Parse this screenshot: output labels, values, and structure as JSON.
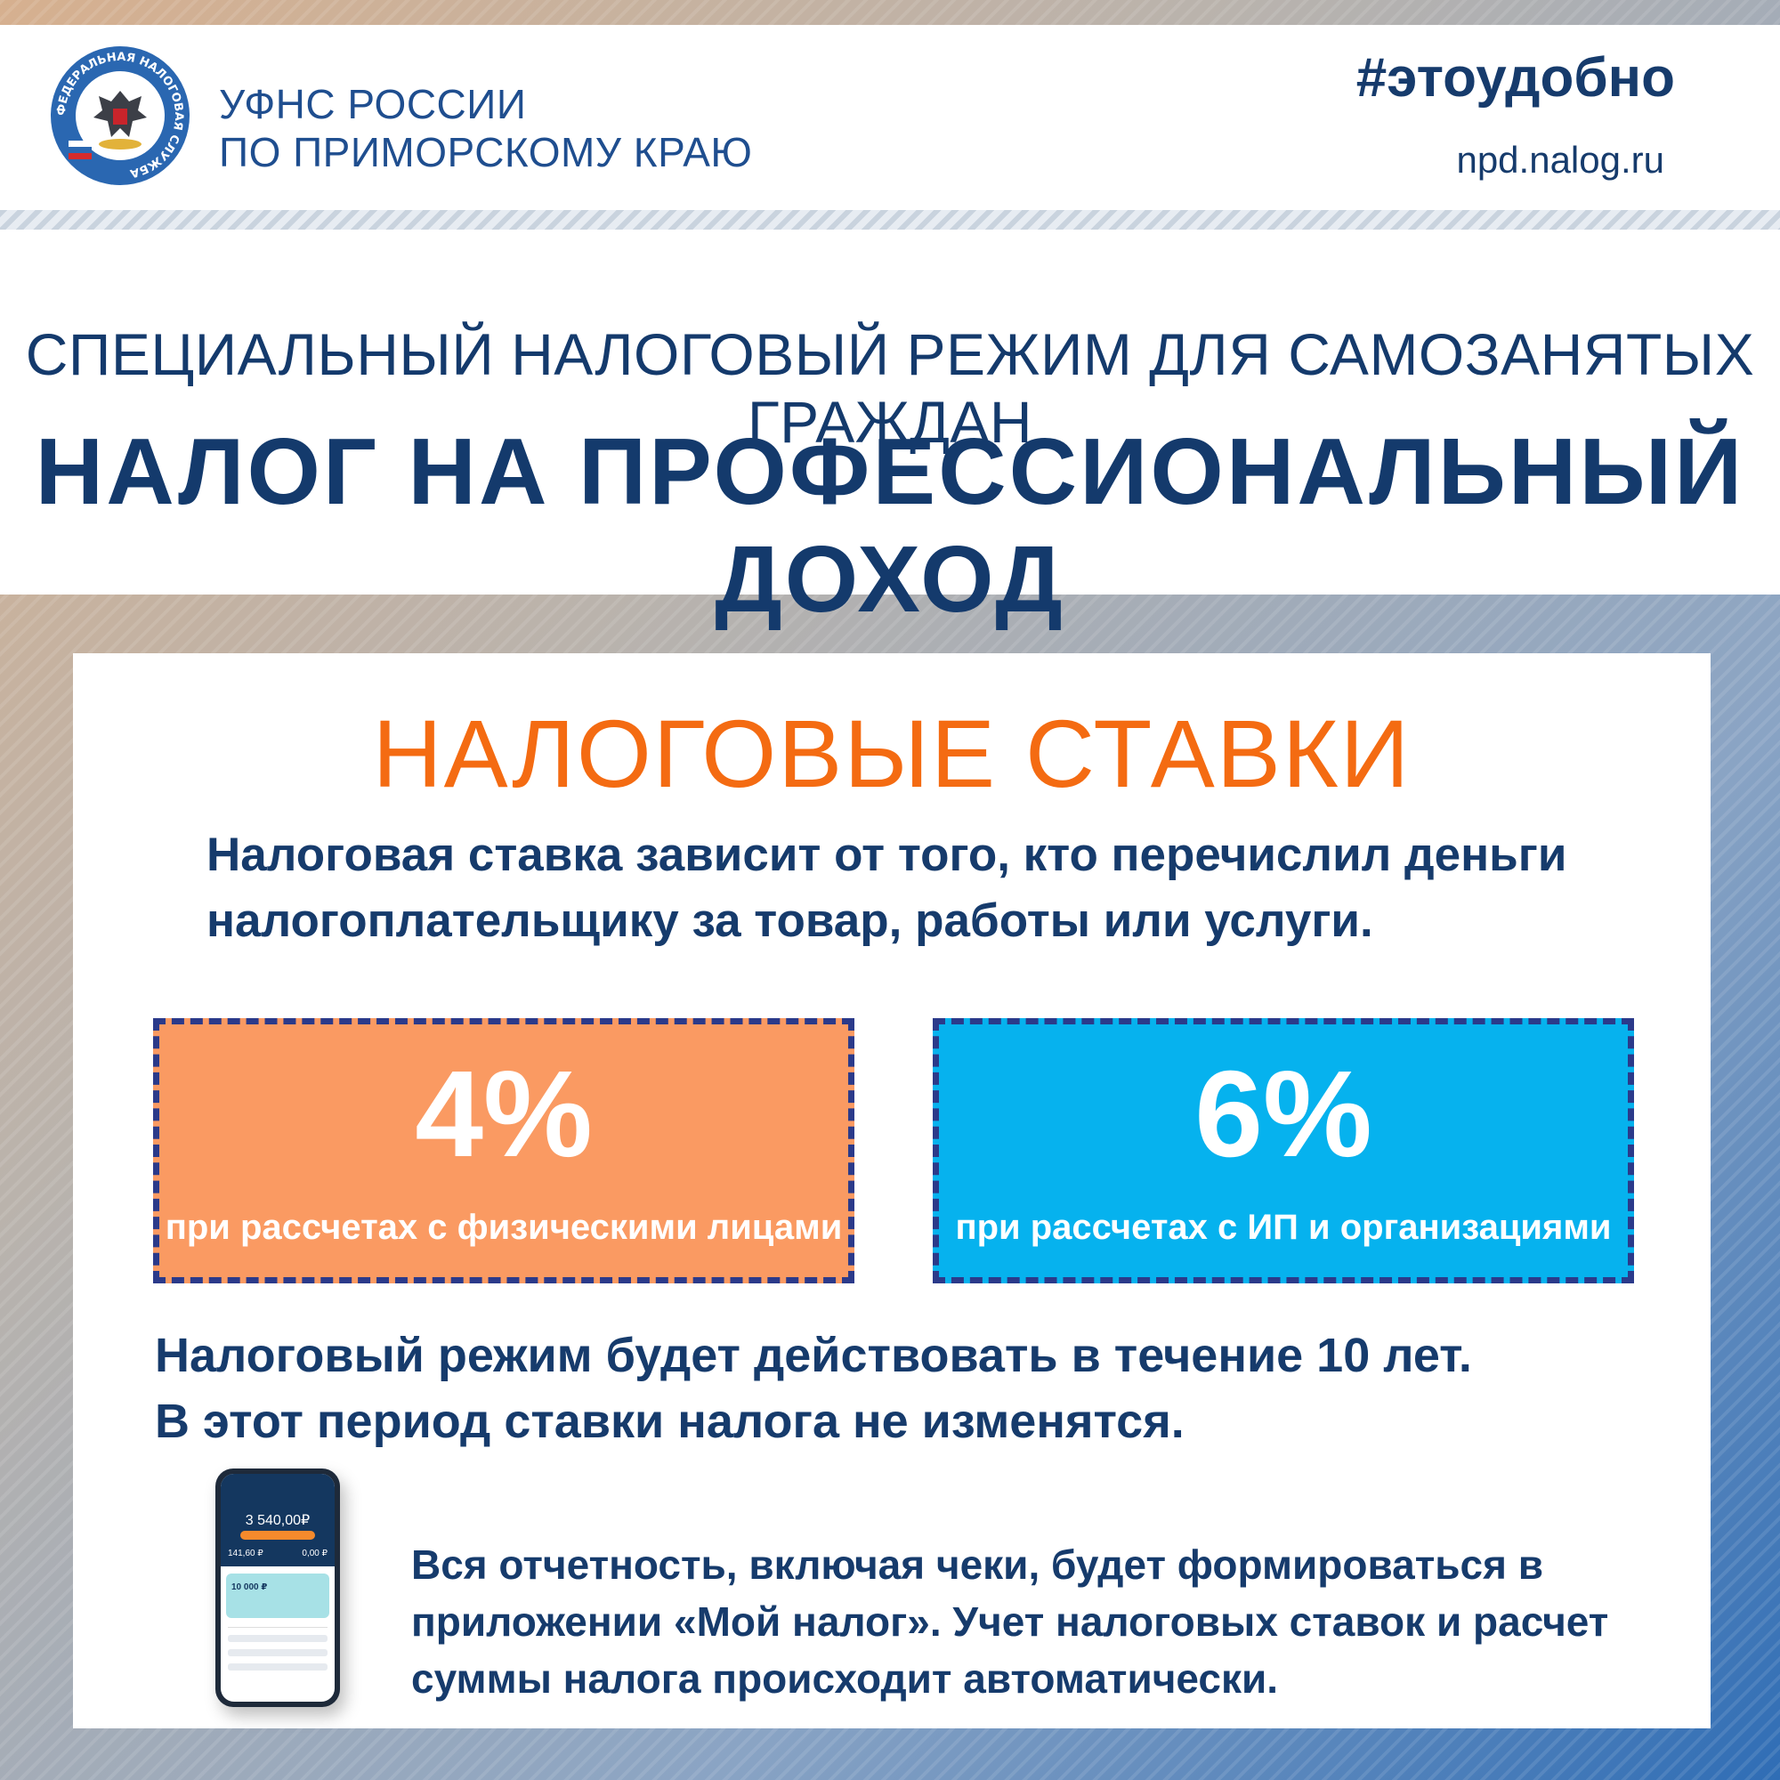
{
  "header": {
    "org_line1": "УФНС РОССИИ",
    "org_line2": "ПО ПРИМОРСКОМУ КРАЮ",
    "hashtag": "#этоудобно",
    "site": "npd.nalog.ru",
    "emblem_icon": "fns-emblem-icon",
    "emblem_text": "ФЕДЕРАЛЬНАЯ НАЛОГОВАЯ СЛУЖБА"
  },
  "title": {
    "subtitle": "СПЕЦИАЛЬНЫЙ НАЛОГОВЫЙ РЕЖИМ ДЛЯ САМОЗАНЯТЫХ ГРАЖДАН",
    "main": "НАЛОГ НА ПРОФЕССИОНАЛЬНЫЙ ДОХОД"
  },
  "panel": {
    "title": "НАЛОГОВЫЕ СТАВКИ",
    "intro_line1": "Налоговая ставка зависит от того, кто перечислил деньги",
    "intro_line2": "налогоплательщику за товар, работы или услуги.",
    "rates": [
      {
        "value": "4%",
        "desc": "при рассчетах с физическими лицами",
        "color": "#fa9a62"
      },
      {
        "value": "6%",
        "desc": "при рассчетах с ИП и организациями",
        "color": "#06b2ee"
      }
    ],
    "duration_line1": "Налоговый режим будет действовать в течение 10 лет.",
    "duration_line2": "В этот период ставки налога не изменятся.",
    "app_line1": "Вся отчетность, включая чеки, будет формироваться в",
    "app_line2": "приложении «Мой налог». Учет налоговых ставок и расчет",
    "app_line3": "суммы налога происходит автоматически.",
    "phone": {
      "amount": "3 540,00₽",
      "left_value": "141,60 ₽",
      "right_value": "0,00 ₽",
      "card_value": "10 000 ₽"
    }
  },
  "colors": {
    "navy": "#163b6c",
    "accent_orange": "#f46b12",
    "orange_box": "#fa9a62",
    "blue_box": "#06b2ee",
    "dash": "#2b3a8a"
  }
}
